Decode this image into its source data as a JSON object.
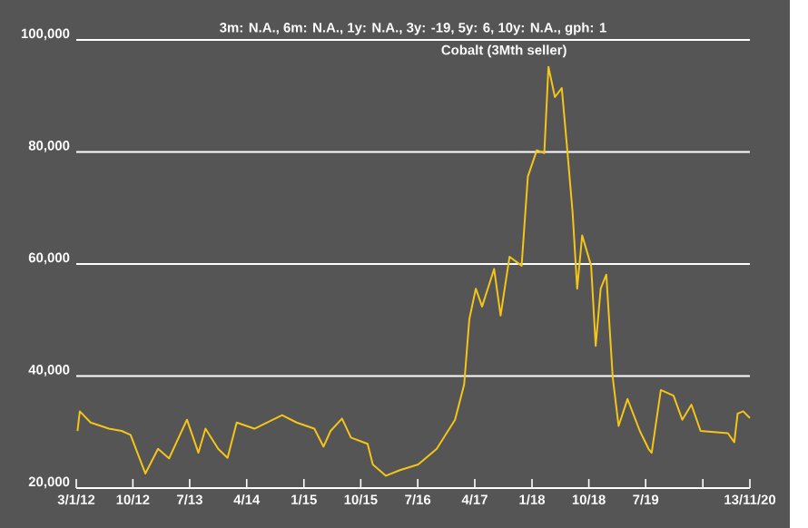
{
  "chart_data": {
    "type": "line",
    "title": "Cobalt (3Mth seller)",
    "subtitle": "3m: N.A.,   6m: N.A.,   1y: N.A.,   3y: -19,   5y: 6,   10y: N.A.,   gph: 1",
    "x": [
      "2012-01-09",
      "2012-01-20",
      "2012-03-12",
      "2012-06-08",
      "2012-08-08",
      "2012-09-20",
      "2012-11-30",
      "2013-01-30",
      "2013-03-24",
      "2013-06-18",
      "2013-08-12",
      "2013-09-15",
      "2013-11-15",
      "2013-12-30",
      "2014-02-12",
      "2014-05-08",
      "2014-09-18",
      "2014-11-27",
      "2015-02-20",
      "2015-04-05",
      "2015-05-09",
      "2015-07-03",
      "2015-08-15",
      "2015-11-03",
      "2015-11-28",
      "2016-01-30",
      "2016-04-06",
      "2016-07-03",
      "2016-09-30",
      "2016-12-27",
      "2017-02-09",
      "2017-02-27",
      "2017-03-06",
      "2017-04-06",
      "2017-05-06",
      "2017-07-03",
      "2017-08-03",
      "2017-09-15",
      "2017-11-12",
      "2017-12-12",
      "2018-01-24",
      "2018-03-01",
      "2018-03-21",
      "2018-04-21",
      "2018-05-24",
      "2018-06-18",
      "2018-07-15",
      "2018-08-06",
      "2018-08-30",
      "2018-10-12",
      "2018-11-03",
      "2018-11-27",
      "2018-12-24",
      "2019-01-24",
      "2019-02-21",
      "2019-04-05",
      "2019-06-03",
      "2019-07-15",
      "2019-07-30",
      "2019-09-12",
      "2019-11-12",
      "2019-12-24",
      "2020-02-06",
      "2020-03-21",
      "2020-07-30",
      "2020-08-30",
      "2020-09-15",
      "2020-10-12",
      "2020-11-13"
    ],
    "series": [
      {
        "color": "#f5c518",
        "values": [
          30200,
          33700,
          31700,
          30600,
          30200,
          29500,
          22600,
          27000,
          25300,
          32200,
          26300,
          30600,
          27000,
          25400,
          31700,
          30600,
          33000,
          31700,
          30600,
          27400,
          30200,
          32400,
          29000,
          27900,
          24200,
          22200,
          23200,
          24200,
          27000,
          32200,
          38500,
          47000,
          50200,
          55600,
          52400,
          59100,
          50800,
          61300,
          59700,
          75600,
          80300,
          79800,
          95200,
          89800,
          91400,
          81000,
          69200,
          55600,
          65100,
          59700,
          45400,
          55600,
          58100,
          39700,
          31100,
          35900,
          30200,
          27000,
          26300,
          37500,
          36500,
          32200,
          34900,
          30200,
          29800,
          28200,
          33300,
          33700,
          32500
        ]
      }
    ],
    "xlim": [
      "2012-01-03",
      "2020-11-13"
    ],
    "xticks": [
      {
        "value": "2012-01-03",
        "label": "3/1/12"
      },
      {
        "value": "2012-10-01",
        "label": "10/12"
      },
      {
        "value": "2013-07-01",
        "label": "7/13"
      },
      {
        "value": "2014-04-01",
        "label": "4/14"
      },
      {
        "value": "2015-01-01",
        "label": "1/15"
      },
      {
        "value": "2015-10-01",
        "label": "10/15"
      },
      {
        "value": "2016-07-01",
        "label": "7/16"
      },
      {
        "value": "2017-04-01",
        "label": "4/17"
      },
      {
        "value": "2018-01-01",
        "label": "1/18"
      },
      {
        "value": "2018-10-01",
        "label": "10/18"
      },
      {
        "value": "2019-07-01",
        "label": "7/19"
      },
      {
        "value": "2020-04-01",
        "label": null
      },
      {
        "value": "2020-11-13",
        "label": "13/11/20"
      }
    ],
    "ylim": [
      20000,
      100000
    ],
    "yticks": [
      {
        "value": 20000,
        "label": "20,000"
      },
      {
        "value": 40000,
        "label": "40,000"
      },
      {
        "value": 60000,
        "label": "60,000"
      },
      {
        "value": 80000,
        "label": "80,000"
      },
      {
        "value": 100000,
        "label": "100,000"
      }
    ],
    "grid": "y",
    "marker": "none",
    "line_style": "solid"
  }
}
